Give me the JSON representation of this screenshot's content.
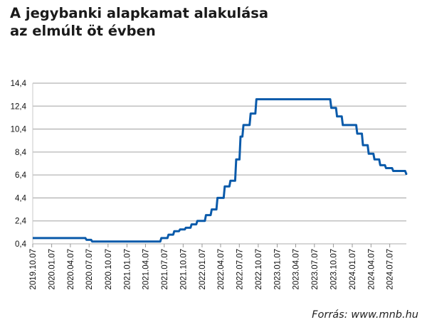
{
  "title_line1": "A jegybanki alapkamat alakulása",
  "title_line2": "az elmúlt öt évben",
  "source": "Forrás: www.mnb.hu",
  "chart_data": {
    "type": "line",
    "step": true,
    "title": "A jegybanki alapkamat alakulása az elmúlt öt évben",
    "xlabel": "",
    "ylabel": "",
    "ylim": [
      0.4,
      14.4
    ],
    "yticks": [
      "0,4",
      "2,4",
      "4,4",
      "6,4",
      "8,4",
      "10,4",
      "12,4",
      "14,4"
    ],
    "ytick_values": [
      0.4,
      2.4,
      4.4,
      6.4,
      8.4,
      10.4,
      12.4,
      14.4
    ],
    "xticks": [
      "2019.10.07",
      "2020.01.07",
      "2020.04.07",
      "2020.07.07",
      "2020.10.07",
      "2021.01.07",
      "2021.04.07",
      "2021.07.07",
      "2021.10.07",
      "2022.01.07",
      "2022.04.07",
      "2022.07.07",
      "2022.10.07",
      "2023.01.07",
      "2023.04.07",
      "2023.07.07",
      "2023.10.07",
      "2024.01.07",
      "2024.04.07",
      "2024.07.07"
    ],
    "grid": "horizontal",
    "color": "#0a5aaa",
    "series": [
      {
        "points": [
          [
            "2019-10-07",
            0.9
          ],
          [
            "2020-06-24",
            0.75
          ],
          [
            "2020-07-22",
            0.6
          ],
          [
            "2021-06-23",
            0.9
          ],
          [
            "2021-07-28",
            1.2
          ],
          [
            "2021-08-25",
            1.5
          ],
          [
            "2021-09-22",
            1.65
          ],
          [
            "2021-10-20",
            1.8
          ],
          [
            "2021-11-17",
            2.1
          ],
          [
            "2021-12-15",
            2.4
          ],
          [
            "2022-01-26",
            2.9
          ],
          [
            "2022-02-23",
            3.4
          ],
          [
            "2022-03-23",
            4.4
          ],
          [
            "2022-04-27",
            5.4
          ],
          [
            "2022-05-25",
            5.9
          ],
          [
            "2022-06-22",
            7.75
          ],
          [
            "2022-07-13",
            9.75
          ],
          [
            "2022-07-27",
            10.75
          ],
          [
            "2022-08-31",
            11.75
          ],
          [
            "2022-09-28",
            13.0
          ],
          [
            "2023-09-27",
            12.25
          ],
          [
            "2023-10-25",
            11.5
          ],
          [
            "2023-11-22",
            10.75
          ],
          [
            "2024-01-31",
            10.0
          ],
          [
            "2024-02-28",
            9.0
          ],
          [
            "2024-03-27",
            8.25
          ],
          [
            "2024-04-24",
            7.75
          ],
          [
            "2024-05-22",
            7.25
          ],
          [
            "2024-06-19",
            7.0
          ],
          [
            "2024-07-24",
            6.75
          ],
          [
            "2024-09-25",
            6.5
          ],
          [
            "2024-09-30",
            6.5
          ]
        ]
      }
    ]
  }
}
